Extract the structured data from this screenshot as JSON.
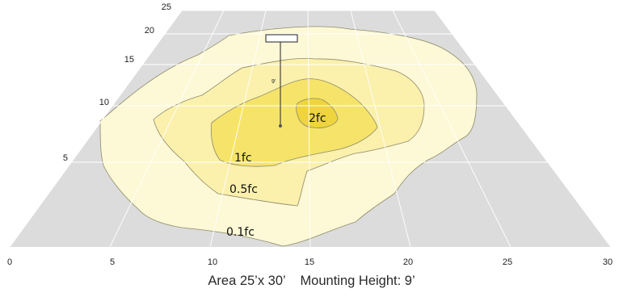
{
  "diagram": {
    "x_ticks": [
      "0",
      "5",
      "10",
      "15",
      "20",
      "25",
      "30"
    ],
    "y_ticks": [
      "5",
      "10",
      "15",
      "20",
      "25"
    ],
    "contour_labels": {
      "c2": "2fc",
      "c1": "1fc",
      "c05": "0.5fc",
      "c01": "0.1fc"
    },
    "mounting_label": "9'",
    "caption": {
      "area": "Area 25’x 30’",
      "height": "Mounting Height: 9’"
    },
    "colors": {
      "floor": "#dcdcdc",
      "grid": "#ffffff",
      "c01": "#fdf8d5",
      "c05": "#fbf0ac",
      "c1": "#f6e46a",
      "c2": "#efd43e",
      "outline": "#8c8a6a"
    }
  }
}
